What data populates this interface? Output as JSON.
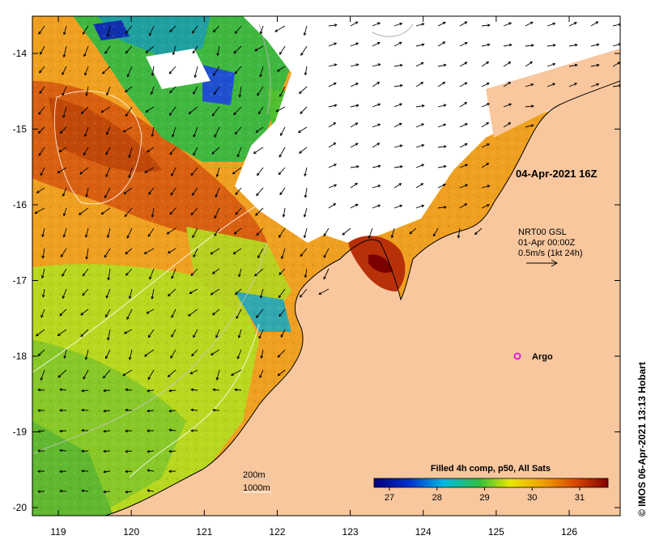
{
  "map": {
    "date_label": "04-Apr-2021 16Z",
    "current_source": "NRT00 GSL",
    "current_time": "01-Apr 00:00Z",
    "current_scale": "0.5m/s (1kt 24h)",
    "argo_label": "Argo",
    "contour_200": "200m",
    "contour_1000": "1000m",
    "colorbar_title": "Filled 4h comp, p50, All Sats",
    "colorbar_ticks": [
      "27",
      "28",
      "29",
      "30",
      "31"
    ],
    "credit": "© IMOS 06-Apr-2021 13:13 Hobart",
    "x_ticks": [
      "119",
      "120",
      "121",
      "122",
      "123",
      "124",
      "125",
      "126"
    ],
    "y_ticks": [
      "-14",
      "-15",
      "-16",
      "-17",
      "-18",
      "-19",
      "-20"
    ],
    "colors": {
      "land": "#f9c79e",
      "cloud": "#ffffff",
      "argo": "#e020e0"
    }
  }
}
